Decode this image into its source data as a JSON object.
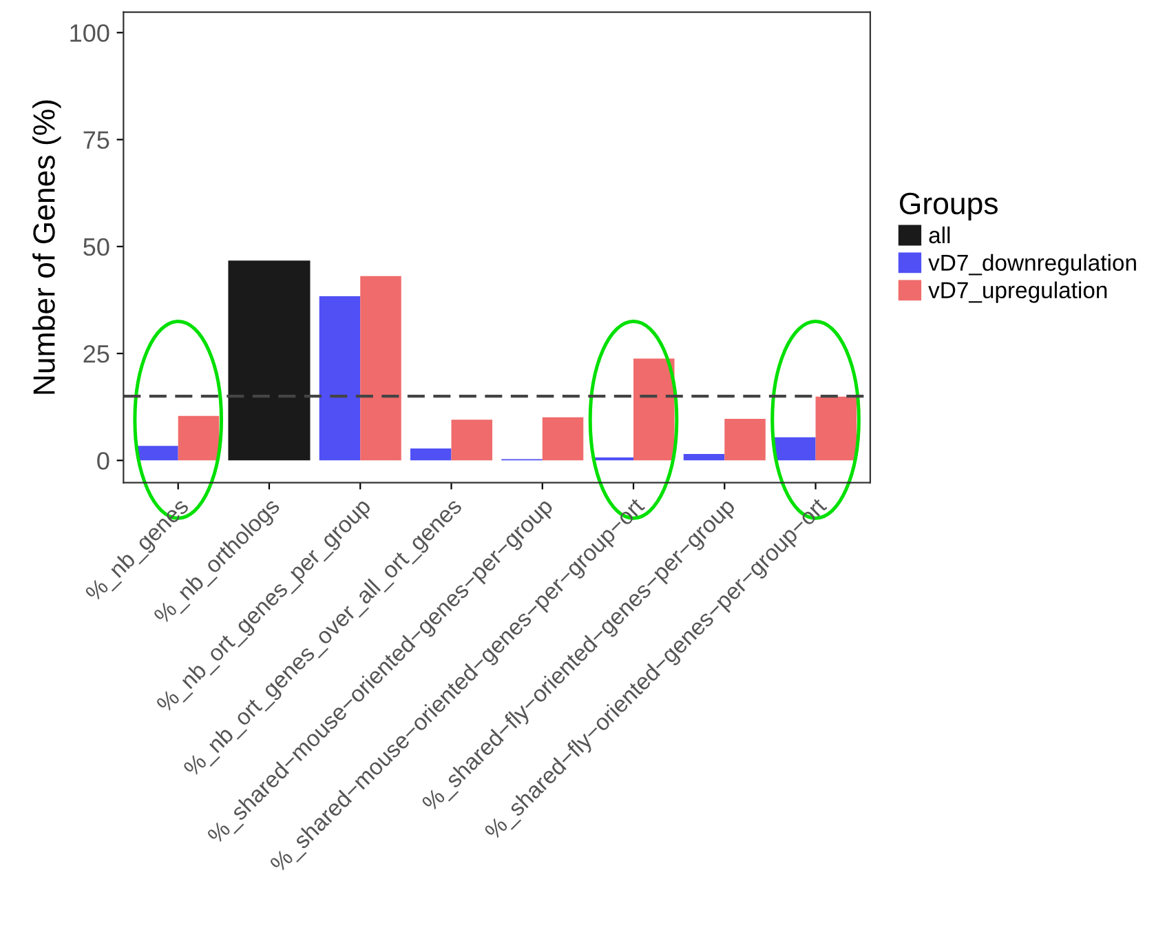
{
  "chart_data": {
    "type": "bar",
    "ylabel": "Number of Genes (%)",
    "legend_title": "Groups",
    "legend": "right",
    "categories": [
      "%_nb_genes",
      "%_nb_orthologs",
      "%_nb_ort_genes_per_group",
      "%_nb_ort_genes_over_all_ort_genes",
      "%_shared−mouse−oriented−genes−per−group",
      "%_shared−mouse−oriented−genes−per−group−ort",
      "%_shared−fly−oriented−genes−per−group",
      "%_shared−fly−oriented−genes−per−group−ort"
    ],
    "series": [
      {
        "name": "all",
        "color": "#1a1a1a",
        "values": [
          null,
          46.7,
          null,
          null,
          null,
          null,
          null,
          null
        ]
      },
      {
        "name": "vD7_downregulation",
        "color": "#5050f5",
        "values": [
          3.4,
          null,
          38.4,
          2.8,
          0.3,
          0.7,
          1.5,
          5.4
        ]
      },
      {
        "name": "vD7_upregulation",
        "color": "#f06b6b",
        "values": [
          10.4,
          null,
          43.1,
          9.5,
          10.1,
          23.8,
          9.7,
          14.9
        ]
      }
    ],
    "ylim": [
      -5.2,
      104.8
    ],
    "yticks": [
      0,
      25,
      50,
      75,
      100
    ],
    "grid": false,
    "ref_lines": [
      {
        "axis": "y",
        "value": 15,
        "color": "#444444",
        "line_style": "dashed"
      }
    ]
  }
}
